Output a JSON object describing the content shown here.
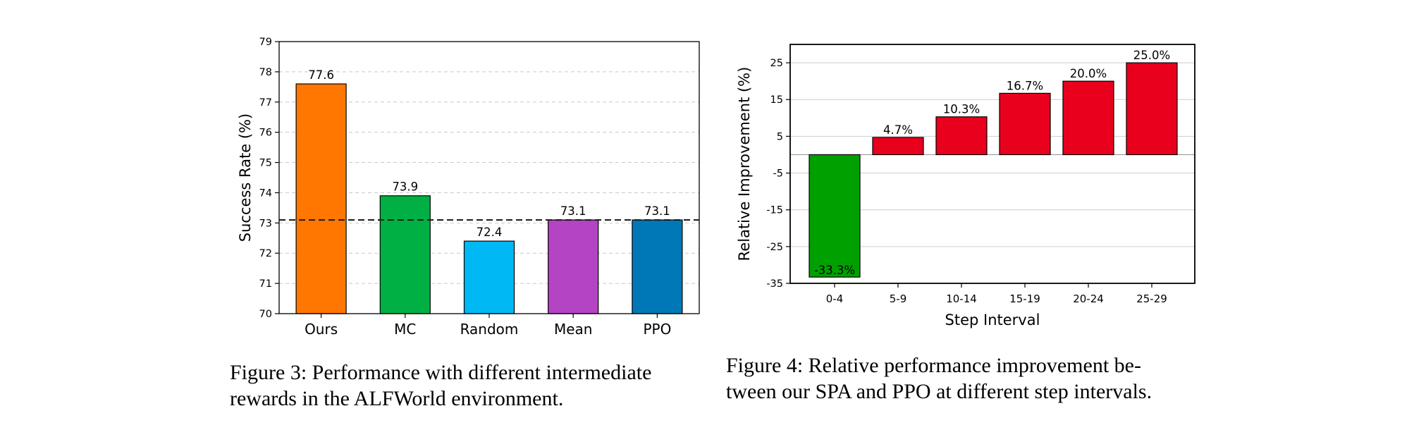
{
  "chart_data": [
    {
      "type": "bar",
      "title": "",
      "xlabel": "",
      "ylabel": "Success Rate (%)",
      "categories": [
        "Ours",
        "MC",
        "Random",
        "Mean",
        "PPO"
      ],
      "values": [
        77.6,
        73.9,
        72.4,
        73.1,
        73.1
      ],
      "value_labels": [
        "77.6",
        "73.9",
        "72.4",
        "73.1",
        "73.1"
      ],
      "colors": [
        "#ff7700",
        "#00b044",
        "#00b8f4",
        "#b444c4",
        "#0078b8"
      ],
      "ylim": [
        70,
        79
      ],
      "yticks": [
        "70",
        "71",
        "72",
        "73",
        "74",
        "75",
        "76",
        "77",
        "78",
        "79"
      ],
      "reference_line": 73.1,
      "grid": "horizontal dashed"
    },
    {
      "type": "bar",
      "title": "",
      "xlabel": "Step Interval",
      "ylabel": "Relative Improvement (%)",
      "categories": [
        "0-4",
        "5-9",
        "10-14",
        "15-19",
        "20-24",
        "25-29"
      ],
      "values": [
        -33.3,
        4.7,
        10.3,
        16.7,
        20.0,
        25.0
      ],
      "value_labels": [
        "-33.3%",
        "4.7%",
        "10.3%",
        "16.7%",
        "20.0%",
        "25.0%"
      ],
      "colors": [
        "#00a000",
        "#e8001c",
        "#e8001c",
        "#e8001c",
        "#e8001c",
        "#e8001c"
      ],
      "ylim": [
        -35,
        30
      ],
      "yticks": [
        "-35",
        "-25",
        "-15",
        "-5",
        "5",
        "15",
        "25"
      ],
      "grid": "horizontal"
    }
  ],
  "captions": {
    "fig3": {
      "line1": "Figure 3: Performance with different intermediate",
      "line2": "rewards in the ALFWorld environment."
    },
    "fig4": {
      "line1": "Figure 4: Relative performance improvement be-",
      "line2": "tween our SPA and PPO at different step intervals."
    }
  }
}
